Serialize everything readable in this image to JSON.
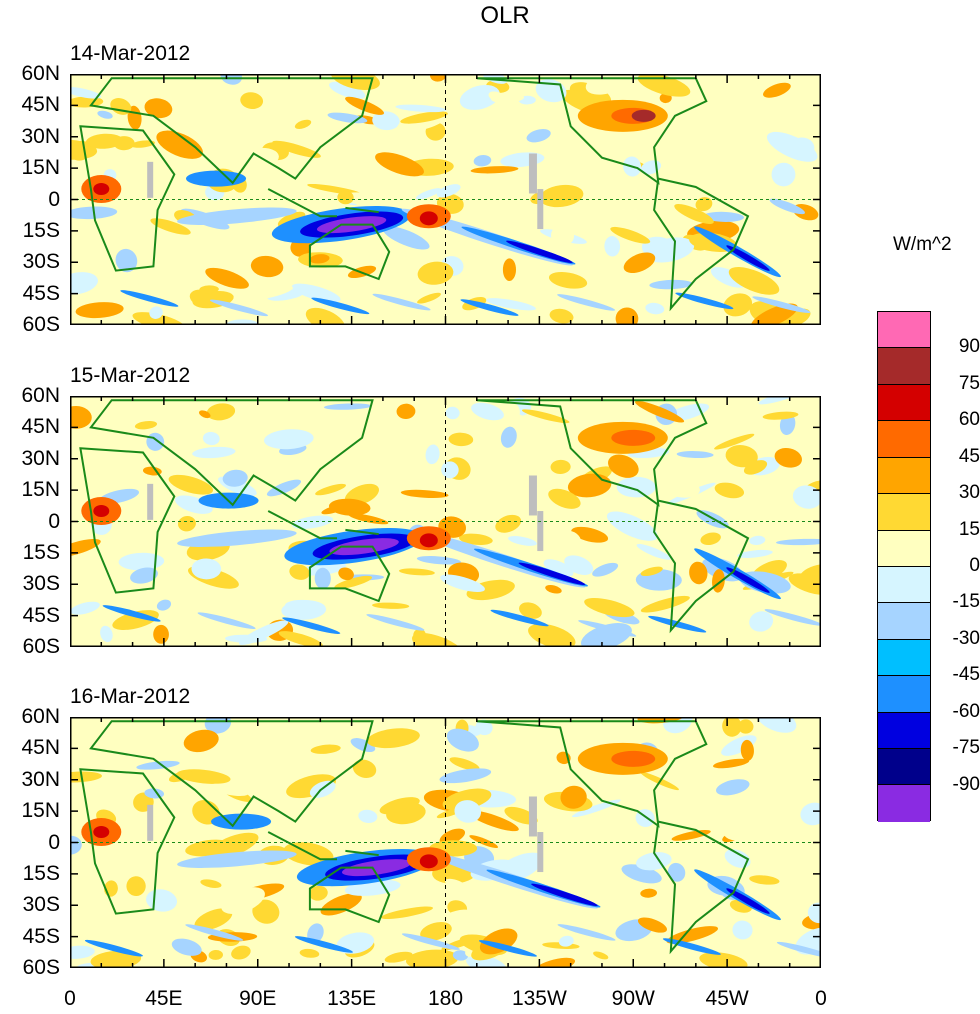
{
  "title": "OLR",
  "units": "W/m^2",
  "panels": [
    {
      "date": "14-Mar-2012"
    },
    {
      "date": "15-Mar-2012"
    },
    {
      "date": "16-Mar-2012"
    }
  ],
  "lat_labels": [
    "60N",
    "45N",
    "30N",
    "15N",
    "0",
    "15S",
    "30S",
    "45S",
    "60S"
  ],
  "lon_labels": [
    "0",
    "45E",
    "90E",
    "135E",
    "180",
    "135W",
    "90W",
    "45W",
    "0"
  ],
  "colorbar": {
    "levels": [
      "90",
      "75",
      "60",
      "45",
      "30",
      "15",
      "0",
      "-15",
      "-30",
      "-45",
      "-60",
      "-75",
      "-90"
    ],
    "colors": [
      "#ff69b4",
      "#a52a2a",
      "#d40000",
      "#ff6a00",
      "#ffa500",
      "#ffd933",
      "#ffffc0",
      "#d6f5ff",
      "#a6d4ff",
      "#00bfff",
      "#1e90ff",
      "#0000e0",
      "#00008b",
      "#8a2be2"
    ]
  },
  "colors": {
    "land_outline": "#1a8a1a",
    "missing": "#bebebe"
  }
}
